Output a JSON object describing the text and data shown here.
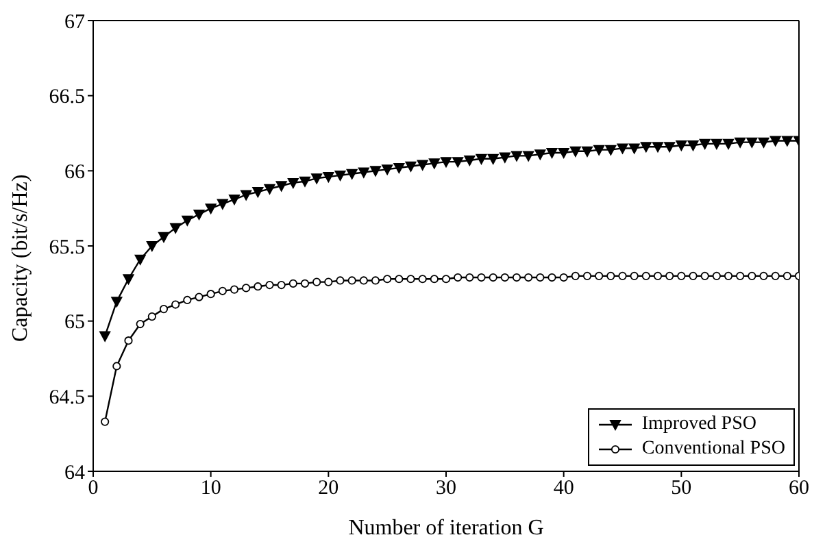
{
  "chart_data": {
    "type": "line",
    "xlabel": "Number of iteration G",
    "ylabel": "Capacity (bit/s/Hz)",
    "x": [
      1,
      2,
      3,
      4,
      5,
      6,
      7,
      8,
      9,
      10,
      11,
      12,
      13,
      14,
      15,
      16,
      17,
      18,
      19,
      20,
      21,
      22,
      23,
      24,
      25,
      26,
      27,
      28,
      29,
      30,
      31,
      32,
      33,
      34,
      35,
      36,
      37,
      38,
      39,
      40,
      41,
      42,
      43,
      44,
      45,
      46,
      47,
      48,
      49,
      50,
      51,
      52,
      53,
      54,
      55,
      56,
      57,
      58,
      59,
      60
    ],
    "series": [
      {
        "name": "Improved PSO",
        "color": "#000000",
        "marker": "triangle",
        "values": [
          64.9,
          65.13,
          65.28,
          65.41,
          65.5,
          65.56,
          65.62,
          65.67,
          65.71,
          65.75,
          65.78,
          65.81,
          65.84,
          65.86,
          65.88,
          65.9,
          65.92,
          65.93,
          65.95,
          65.96,
          65.97,
          65.98,
          65.99,
          66.0,
          66.01,
          66.02,
          66.03,
          66.04,
          66.05,
          66.06,
          66.06,
          66.07,
          66.08,
          66.08,
          66.09,
          66.1,
          66.1,
          66.11,
          66.12,
          66.12,
          66.13,
          66.13,
          66.14,
          66.14,
          66.15,
          66.15,
          66.16,
          66.16,
          66.16,
          66.17,
          66.17,
          66.18,
          66.18,
          66.18,
          66.19,
          66.19,
          66.19,
          66.2,
          66.2,
          66.2
        ]
      },
      {
        "name": "Conventional PSO",
        "color": "#000000",
        "marker": "circle",
        "values": [
          64.33,
          64.7,
          64.87,
          64.98,
          65.03,
          65.08,
          65.11,
          65.14,
          65.16,
          65.18,
          65.2,
          65.21,
          65.22,
          65.23,
          65.24,
          65.24,
          65.25,
          65.25,
          65.26,
          65.26,
          65.27,
          65.27,
          65.27,
          65.27,
          65.28,
          65.28,
          65.28,
          65.28,
          65.28,
          65.28,
          65.29,
          65.29,
          65.29,
          65.29,
          65.29,
          65.29,
          65.29,
          65.29,
          65.29,
          65.29,
          65.3,
          65.3,
          65.3,
          65.3,
          65.3,
          65.3,
          65.3,
          65.3,
          65.3,
          65.3,
          65.3,
          65.3,
          65.3,
          65.3,
          65.3,
          65.3,
          65.3,
          65.3,
          65.3,
          65.3
        ]
      }
    ],
    "xlim": [
      0,
      60
    ],
    "xticks": [
      0,
      10,
      20,
      30,
      40,
      50,
      60
    ],
    "ylim": [
      64,
      67
    ],
    "yticks": [
      64,
      64.5,
      65,
      65.5,
      66,
      66.5,
      67
    ],
    "legend": "bottom right",
    "grid": false,
    "line_style": "solid"
  }
}
